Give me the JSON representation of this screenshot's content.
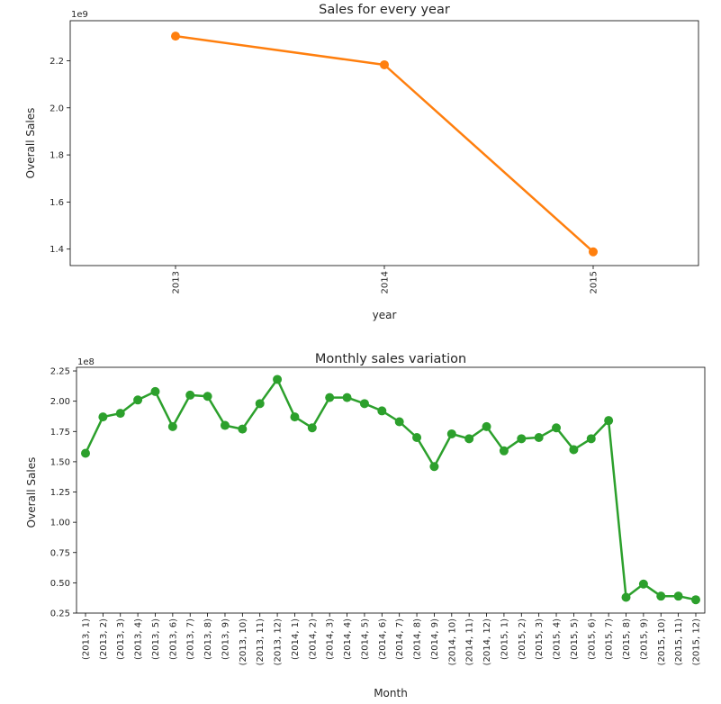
{
  "chart_data": [
    {
      "type": "line",
      "title": "Sales for every year",
      "xlabel": "year",
      "ylabel": "Overall Sales",
      "offset_label": "1e9",
      "categories": [
        "2013",
        "2014",
        "2015"
      ],
      "values": [
        2.3046,
        2.1828,
        1.3884
      ],
      "yticks": [
        1.4,
        1.6,
        1.8,
        2.0,
        2.2
      ],
      "ytick_labels": [
        "1.4",
        "1.6",
        "1.8",
        "2.0",
        "2.2"
      ],
      "ylim": [
        1.33,
        2.37
      ],
      "color": "#ff7f0e",
      "grid": false
    },
    {
      "type": "line",
      "title": "Monthly sales variation",
      "xlabel": "Month",
      "ylabel": "Overall Sales",
      "offset_label": "1e8",
      "categories": [
        "(2013, 1)",
        "(2013, 2)",
        "(2013, 3)",
        "(2013, 4)",
        "(2013, 5)",
        "(2013, 6)",
        "(2013, 7)",
        "(2013, 8)",
        "(2013, 9)",
        "(2013, 10)",
        "(2013, 11)",
        "(2013, 12)",
        "(2014, 1)",
        "(2014, 2)",
        "(2014, 3)",
        "(2014, 4)",
        "(2014, 5)",
        "(2014, 6)",
        "(2014, 7)",
        "(2014, 8)",
        "(2014, 9)",
        "(2014, 10)",
        "(2014, 11)",
        "(2014, 12)",
        "(2015, 1)",
        "(2015, 2)",
        "(2015, 3)",
        "(2015, 4)",
        "(2015, 5)",
        "(2015, 6)",
        "(2015, 7)",
        "(2015, 8)",
        "(2015, 9)",
        "(2015, 10)",
        "(2015, 11)",
        "(2015, 12)"
      ],
      "values": [
        1.57,
        1.87,
        1.9,
        2.01,
        2.08,
        1.79,
        2.05,
        2.04,
        1.8,
        1.77,
        1.98,
        2.18,
        1.87,
        1.78,
        2.03,
        2.03,
        1.98,
        1.92,
        1.83,
        1.7,
        1.46,
        1.73,
        1.69,
        1.79,
        1.59,
        1.69,
        1.7,
        1.78,
        1.6,
        1.69,
        1.84,
        0.38,
        0.49,
        0.39,
        0.39,
        0.36
      ],
      "yticks": [
        0.25,
        0.5,
        0.75,
        1.0,
        1.25,
        1.5,
        1.75,
        2.0,
        2.25
      ],
      "ytick_labels": [
        "0.25",
        "0.50",
        "0.75",
        "1.00",
        "1.25",
        "1.50",
        "1.75",
        "2.00",
        "2.25"
      ],
      "ylim": [
        0.25,
        2.28
      ],
      "color": "#2ca02c",
      "grid": false
    }
  ]
}
